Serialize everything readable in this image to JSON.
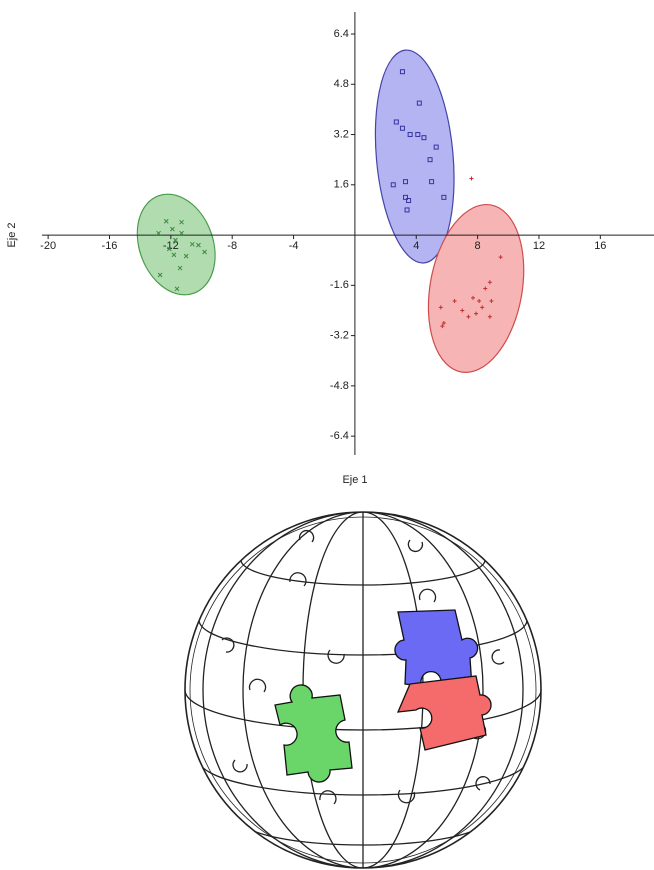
{
  "chart_data": {
    "type": "scatter",
    "x_label": "Eje 1",
    "y_label": "Eje 2",
    "xlim": [
      -20.4,
      19.5
    ],
    "ylim": [
      -7.0,
      7.1
    ],
    "xticks": [
      -20,
      -16,
      -12,
      -8,
      -4,
      4,
      8,
      12,
      16
    ],
    "yticks": [
      6.4,
      4.8,
      3.2,
      1.6,
      -1.6,
      -3.2,
      -4.8,
      -6.4
    ],
    "series": [
      {
        "color": "#3535a0",
        "marker": "square",
        "x": [
          3.1,
          2.7,
          3.1,
          3.6,
          4.2,
          4.1,
          4.5,
          5.3,
          4.9,
          3.3,
          2.5,
          5.0,
          3.3,
          3.5,
          5.8,
          3.4
        ],
        "y": [
          5.2,
          3.6,
          3.4,
          3.2,
          4.2,
          3.2,
          3.1,
          2.8,
          2.4,
          1.7,
          1.6,
          1.7,
          1.2,
          1.1,
          1.2,
          0.8
        ],
        "ellipse": {
          "cx": 3.9,
          "cy": 2.5,
          "rx": 2.5,
          "ry": 3.4,
          "angle": -5,
          "fill": "#b4b4f2",
          "stroke": "#4545a8"
        }
      },
      {
        "color": "#c03030",
        "marker": "cross",
        "x": [
          7.6,
          9.5,
          8.8,
          8.5,
          7.7,
          6.5,
          5.6,
          8.1,
          8.9,
          7.0,
          8.3,
          7.9,
          8.8,
          5.8,
          7.4,
          5.7
        ],
        "y": [
          1.8,
          -0.7,
          -1.5,
          -1.7,
          -2.0,
          -2.1,
          -2.3,
          -2.1,
          -2.1,
          -2.4,
          -2.3,
          -2.5,
          -2.6,
          -2.8,
          -2.6,
          -2.9
        ],
        "ellipse": {
          "cx": 7.9,
          "cy": -1.7,
          "rx": 3.0,
          "ry": 2.7,
          "angle": 10,
          "fill": "#f6b4b4",
          "stroke": "#d04c4c"
        }
      },
      {
        "color": "#3a8a3a",
        "marker": "x",
        "x": [
          -12.3,
          -11.3,
          -12.8,
          -11.9,
          -11.3,
          -11.7,
          -10.6,
          -10.2,
          -9.8,
          -11.8,
          -11.0,
          -11.4,
          -12.7,
          -11.6,
          -12.1
        ],
        "y": [
          0.44,
          0.41,
          0.06,
          0.19,
          0.06,
          -0.16,
          -0.29,
          -0.32,
          -0.54,
          -0.63,
          -0.67,
          -1.05,
          -1.27,
          -1.71,
          -0.44
        ],
        "ellipse": {
          "cx": -11.65,
          "cy": -0.3,
          "rx": 2.4,
          "ry": 1.65,
          "angle": -20,
          "fill": "#b0dcb0",
          "stroke": "#4a9a4a"
        }
      }
    ]
  }
}
